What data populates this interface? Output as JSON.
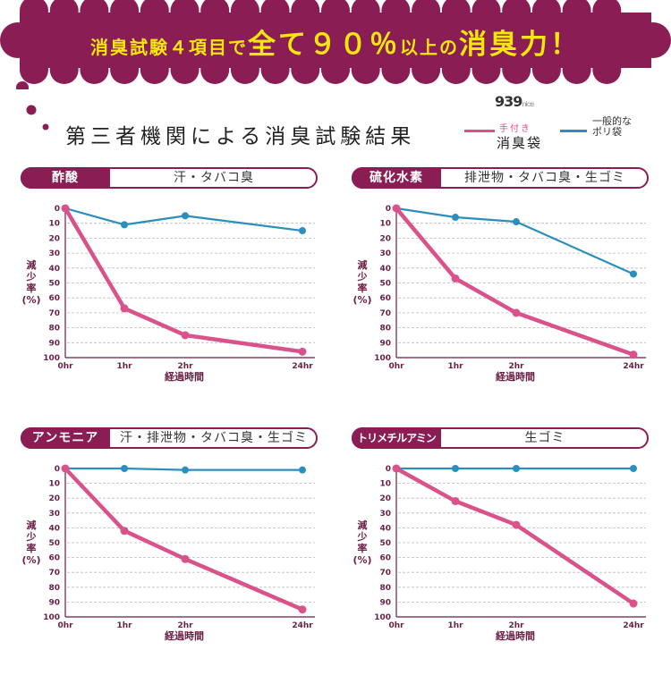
{
  "banner": {
    "part1": "消臭試験４項目で",
    "part2": "全て９０％",
    "part3": "以上の",
    "part4": "消臭力！"
  },
  "subtitle": "第三者機関による消臭試験結果",
  "legend": {
    "logo": "939",
    "logo_small": "nice",
    "pink_top": "手付き",
    "pink_bottom": "消臭袋",
    "blue_line1": "一般的な",
    "blue_line2": "ポリ袋"
  },
  "colors": {
    "brand": "#8b1d55",
    "banner_text": "#f5e60f",
    "pink": "#d9538a",
    "blue": "#2a8fbd"
  },
  "chart_data": [
    {
      "type": "line",
      "category": "酢酸",
      "description": "汗・タバコ臭",
      "x": [
        "0hr",
        "1hr",
        "2hr",
        "24hr"
      ],
      "ylabel": [
        "減",
        "少",
        "率",
        "(%)"
      ],
      "xlabel": "経過時間",
      "yticks": [
        "0",
        "10",
        "20",
        "30",
        "40",
        "50",
        "60",
        "70",
        "80",
        "90",
        "100"
      ],
      "ylim": [
        0,
        100
      ],
      "y_inverted": true,
      "grid": true,
      "series": [
        {
          "name": "手付き消臭袋",
          "color": "pink",
          "values": [
            0,
            67,
            85,
            96
          ]
        },
        {
          "name": "一般的なポリ袋",
          "color": "blue",
          "values": [
            0,
            11,
            5,
            15
          ]
        }
      ]
    },
    {
      "type": "line",
      "category": "硫化水素",
      "description": "排泄物・タバコ臭・生ゴミ",
      "x": [
        "0hr",
        "1hr",
        "2hr",
        "24hr"
      ],
      "ylabel": [
        "減",
        "少",
        "率",
        "(%)"
      ],
      "xlabel": "経過時間",
      "yticks": [
        "0",
        "10",
        "20",
        "30",
        "40",
        "50",
        "60",
        "70",
        "80",
        "90",
        "100"
      ],
      "ylim": [
        0,
        100
      ],
      "y_inverted": true,
      "grid": true,
      "series": [
        {
          "name": "手付き消臭袋",
          "color": "pink",
          "values": [
            0,
            47,
            70,
            98
          ]
        },
        {
          "name": "一般的なポリ袋",
          "color": "blue",
          "values": [
            0,
            6,
            9,
            44
          ]
        }
      ]
    },
    {
      "type": "line",
      "category": "アンモニア",
      "description": "汗・排泄物・タバコ臭・生ゴミ",
      "x": [
        "0hr",
        "1hr",
        "2hr",
        "24hr"
      ],
      "ylabel": [
        "減",
        "少",
        "率",
        "(%)"
      ],
      "xlabel": "経過時間",
      "yticks": [
        "0",
        "10",
        "20",
        "30",
        "40",
        "50",
        "60",
        "70",
        "80",
        "90",
        "100"
      ],
      "ylim": [
        0,
        100
      ],
      "y_inverted": true,
      "grid": true,
      "series": [
        {
          "name": "手付き消臭袋",
          "color": "pink",
          "values": [
            0,
            42,
            61,
            95
          ]
        },
        {
          "name": "一般的なポリ袋",
          "color": "blue",
          "values": [
            0,
            0,
            1,
            1
          ]
        }
      ]
    },
    {
      "type": "line",
      "category": "トリメチルアミン",
      "description": "生ゴミ",
      "x": [
        "0hr",
        "1hr",
        "2hr",
        "24hr"
      ],
      "ylabel": [
        "減",
        "少",
        "率",
        "(%)"
      ],
      "xlabel": "経過時間",
      "yticks": [
        "0",
        "10",
        "20",
        "30",
        "40",
        "50",
        "60",
        "70",
        "80",
        "90",
        "100"
      ],
      "ylim": [
        0,
        100
      ],
      "y_inverted": true,
      "grid": true,
      "series": [
        {
          "name": "手付き消臭袋",
          "color": "pink",
          "values": [
            0,
            22,
            38,
            91
          ]
        },
        {
          "name": "一般的なポリ袋",
          "color": "blue",
          "values": [
            0,
            0,
            0,
            0
          ]
        }
      ]
    }
  ]
}
